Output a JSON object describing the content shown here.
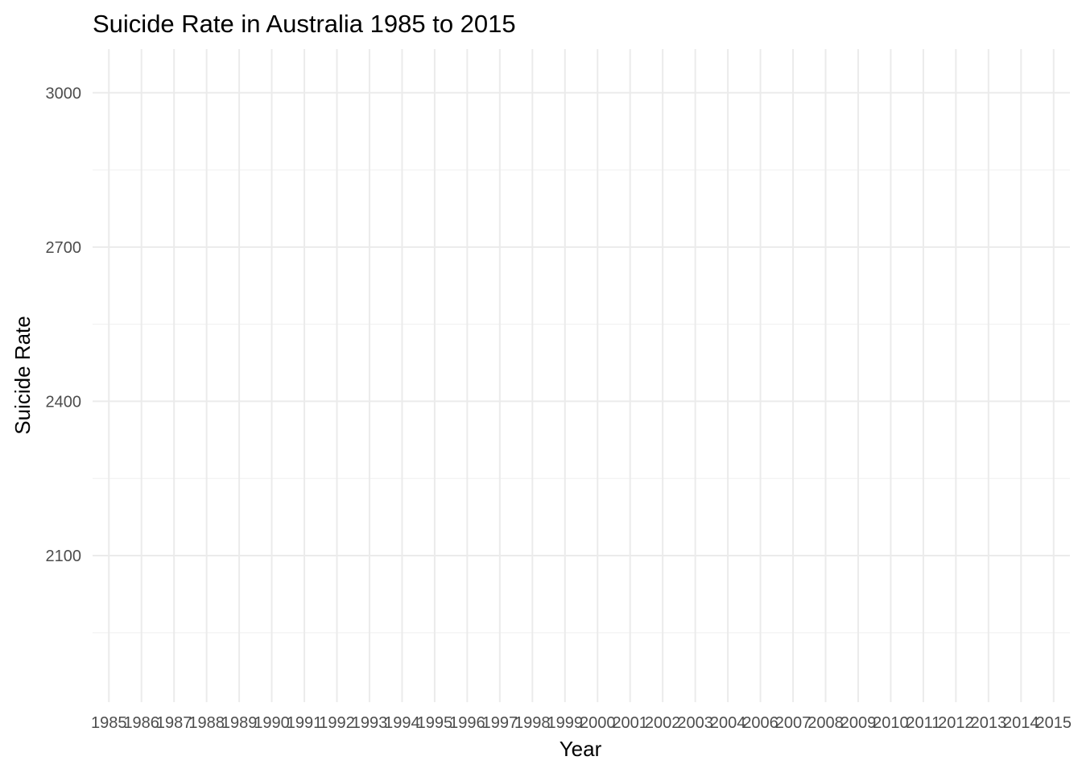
{
  "chart_data": {
    "type": "line",
    "title": "Suicide Rate in Australia 1985 to 2015",
    "xlabel": "Year",
    "ylabel": "Suicide Rate",
    "categories": [
      "1985",
      "1986",
      "1987",
      "1988",
      "1989",
      "1990",
      "1991",
      "1992",
      "1993",
      "1994",
      "1995",
      "1996",
      "1997",
      "1998",
      "1999",
      "2000",
      "2001",
      "2002",
      "2003",
      "2004",
      "2006",
      "2007",
      "2008",
      "2009",
      "2010",
      "2011",
      "2012",
      "2013",
      "2014",
      "2015"
    ],
    "series": [],
    "ylim": [
      1815,
      3085
    ],
    "y_ticks": [
      2100,
      2400,
      2700,
      3000
    ],
    "y_minor_ticks": [
      1950,
      2250,
      2550,
      2850
    ],
    "grid": true,
    "legend": "none"
  }
}
